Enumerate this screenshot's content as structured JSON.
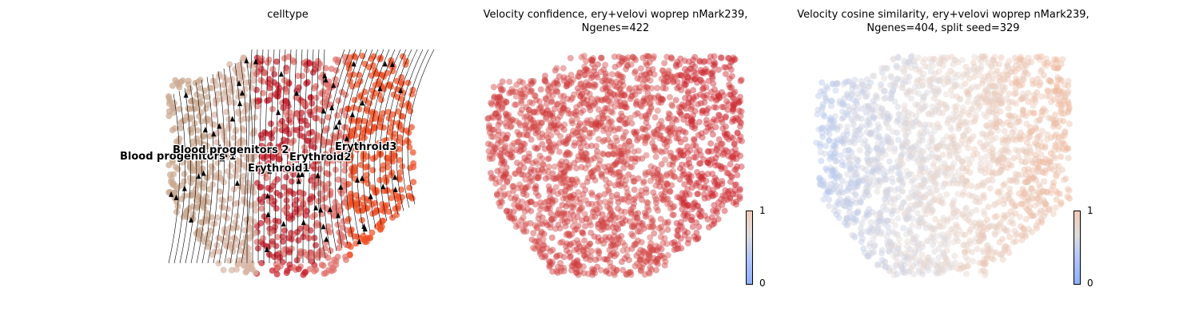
{
  "chart_data": [
    {
      "type": "scatter",
      "title": "celltype",
      "cluster_labels": [
        "Blood progenitors 1",
        "Blood progenitors 2",
        "Erythroid1",
        "Erythroid2",
        "Erythroid3"
      ],
      "colors": {
        "Blood progenitors 1": "#c9a68f",
        "Blood progenitors 2": "#d9b5a4",
        "Erythroid1": "#c8212f",
        "Erythroid2": "#e0706b",
        "Erythroid3": "#f04e23"
      },
      "overlay": "velocity streamlines with arrows"
    },
    {
      "type": "scatter",
      "title_line1": "Velocity confidence, ery+velovi woprep nMark239,",
      "title_line2": "Ngenes=422",
      "colormap": "coolwarm",
      "colorbar_ticks": [
        "0",
        "1"
      ],
      "clim": [
        0,
        1
      ]
    },
    {
      "type": "scatter",
      "title_line1": "Velocity cosine similarity, ery+velovi woprep nMark239,",
      "title_line2": "Ngenes=404, split seed=329",
      "colormap": "coolwarm",
      "colorbar_ticks": [
        "0",
        "1"
      ],
      "clim": [
        0,
        1
      ]
    }
  ]
}
